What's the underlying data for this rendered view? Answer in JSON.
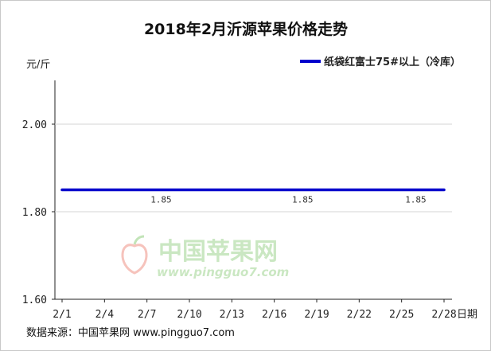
{
  "chart_data": {
    "type": "line",
    "title": "2018年2月沂源苹果价格走势",
    "ylabel": "元/斤",
    "xlabel": "日期",
    "ylim": [
      1.6,
      2.1
    ],
    "yticks": [
      "1.60",
      "1.80",
      "2.00"
    ],
    "categories": [
      "2/1",
      "2/4",
      "2/7",
      "2/10",
      "2/13",
      "2/16",
      "2/19",
      "2/22",
      "2/25",
      "2/28"
    ],
    "series": [
      {
        "name": "纸袋红富士75#以上（冷库）",
        "color": "#0000cc",
        "x": [
          "2/1",
          "2/28"
        ],
        "values": [
          1.85,
          1.85
        ],
        "data_labels": [
          {
            "x": "2/8",
            "text": "1.85"
          },
          {
            "x": "2/18",
            "text": "1.85"
          },
          {
            "x": "2/26",
            "text": "1.85"
          }
        ]
      }
    ],
    "grid": true,
    "legend_position": "top-right"
  },
  "watermark": {
    "text": "中国苹果网",
    "url": "www.pingguo7.com",
    "color": "#a8d89a"
  },
  "source_text": "数据来源：中国苹果网 www.pingguo7.com"
}
